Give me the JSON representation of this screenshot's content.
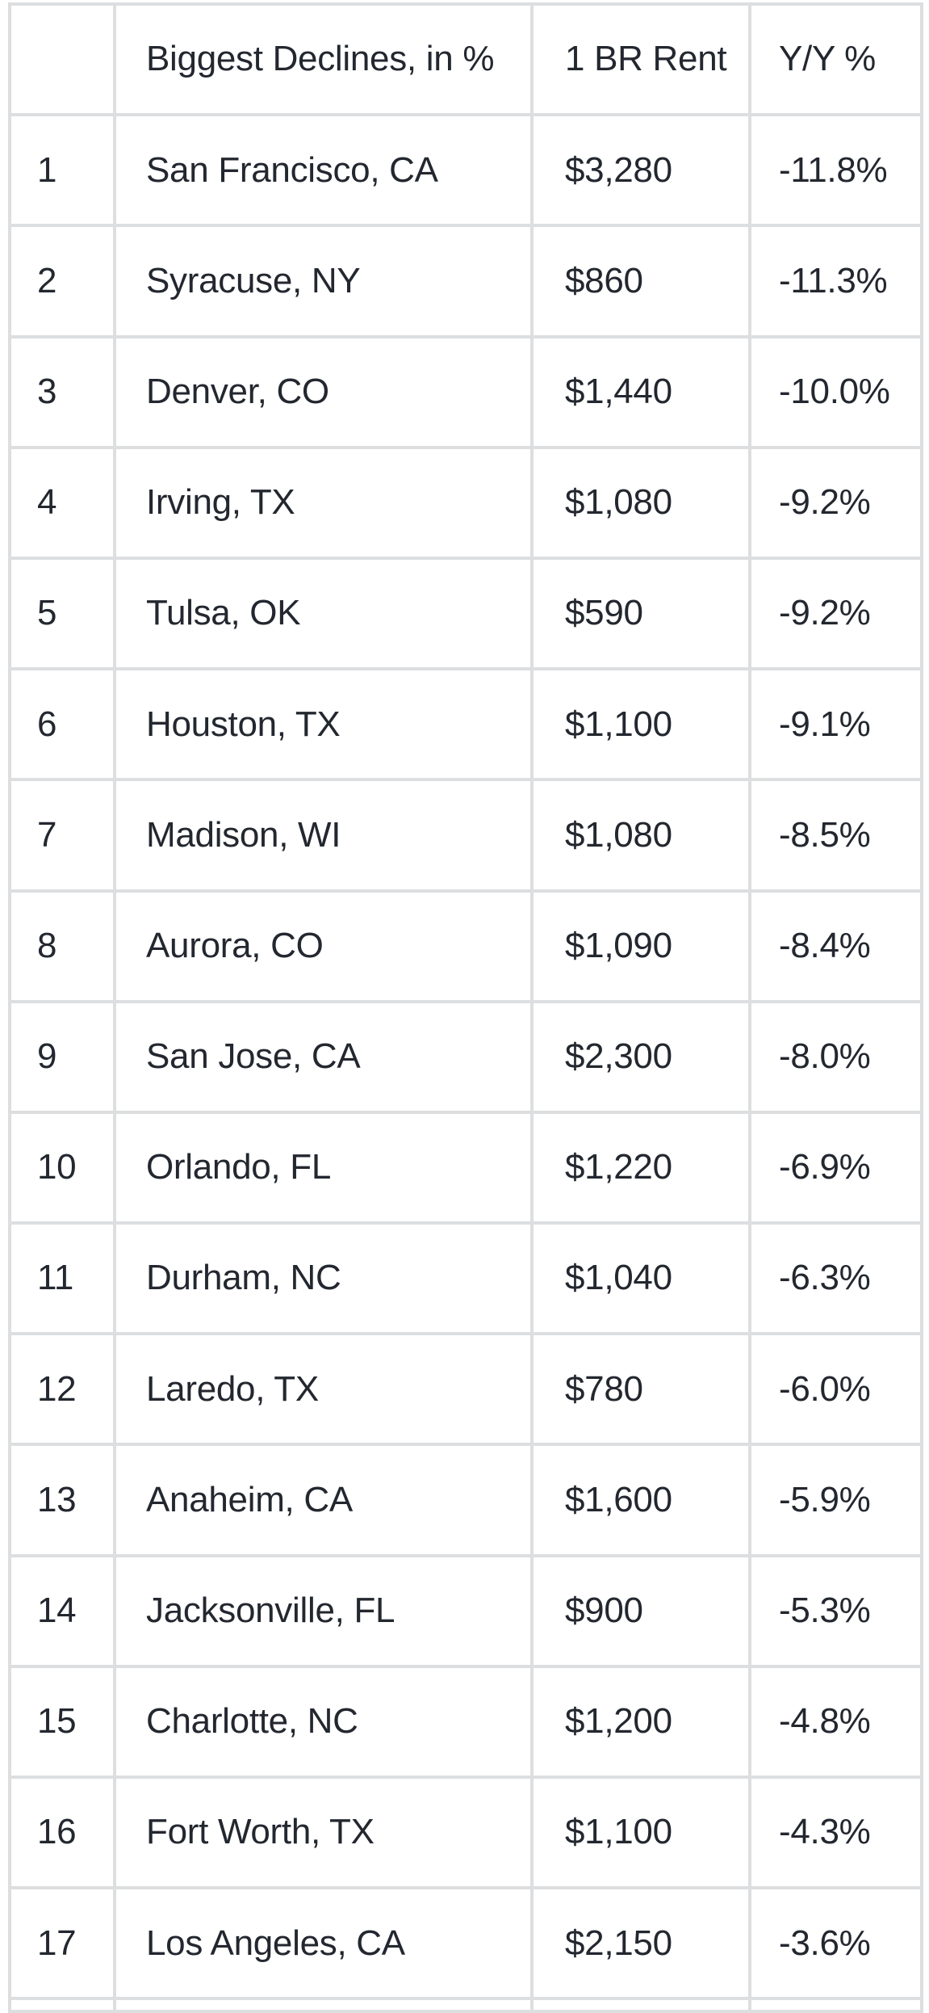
{
  "colors": {
    "border": "#dcdee0",
    "text": "#23272f",
    "background": "#ffffff"
  },
  "table": {
    "columns": [
      {
        "key": "rank",
        "label": ""
      },
      {
        "key": "city",
        "label": "Biggest Declines, in %"
      },
      {
        "key": "rent",
        "label": "1 BR Rent"
      },
      {
        "key": "yoy",
        "label": "Y/Y %"
      }
    ],
    "rows": [
      {
        "rank": "1",
        "city": "San Francisco, CA",
        "rent": "$3,280",
        "yoy": "-11.8%"
      },
      {
        "rank": "2",
        "city": "Syracuse, NY",
        "rent": "$860",
        "yoy": "-11.3%"
      },
      {
        "rank": "3",
        "city": "Denver, CO",
        "rent": "$1,440",
        "yoy": "-10.0%"
      },
      {
        "rank": "4",
        "city": "Irving, TX",
        "rent": "$1,080",
        "yoy": "-9.2%"
      },
      {
        "rank": "5",
        "city": "Tulsa, OK",
        "rent": "$590",
        "yoy": "-9.2%"
      },
      {
        "rank": "6",
        "city": "Houston, TX",
        "rent": "$1,100",
        "yoy": "-9.1%"
      },
      {
        "rank": "7",
        "city": "Madison, WI",
        "rent": "$1,080",
        "yoy": "-8.5%"
      },
      {
        "rank": "8",
        "city": "Aurora, CO",
        "rent": "$1,090",
        "yoy": "-8.4%"
      },
      {
        "rank": "9",
        "city": "San Jose, CA",
        "rent": "$2,300",
        "yoy": "-8.0%"
      },
      {
        "rank": "10",
        "city": "Orlando, FL",
        "rent": "$1,220",
        "yoy": "-6.9%"
      },
      {
        "rank": "11",
        "city": "Durham, NC",
        "rent": "$1,040",
        "yoy": "-6.3%"
      },
      {
        "rank": "12",
        "city": "Laredo, TX",
        "rent": "$780",
        "yoy": "-6.0%"
      },
      {
        "rank": "13",
        "city": "Anaheim, CA",
        "rent": "$1,600",
        "yoy": "-5.9%"
      },
      {
        "rank": "14",
        "city": "Jacksonville, FL",
        "rent": "$900",
        "yoy": "-5.3%"
      },
      {
        "rank": "15",
        "city": "Charlotte, NC",
        "rent": "$1,200",
        "yoy": "-4.8%"
      },
      {
        "rank": "16",
        "city": "Fort Worth, TX",
        "rent": "$1,100",
        "yoy": "-4.3%"
      },
      {
        "rank": "17",
        "city": "Los Angeles, CA",
        "rent": "$2,150",
        "yoy": "-3.6%"
      }
    ]
  },
  "chart_data": {
    "type": "table",
    "title": "Biggest Declines, in %",
    "columns": [
      "",
      "Biggest Declines, in %",
      "1 BR Rent",
      "Y/Y %"
    ],
    "rows": [
      [
        1,
        "San Francisco, CA",
        "$3,280",
        "-11.8%"
      ],
      [
        2,
        "Syracuse, NY",
        "$860",
        "-11.3%"
      ],
      [
        3,
        "Denver, CO",
        "$1,440",
        "-10.0%"
      ],
      [
        4,
        "Irving, TX",
        "$1,080",
        "-9.2%"
      ],
      [
        5,
        "Tulsa, OK",
        "$590",
        "-9.2%"
      ],
      [
        6,
        "Houston, TX",
        "$1,100",
        "-9.1%"
      ],
      [
        7,
        "Madison, WI",
        "$1,080",
        "-8.5%"
      ],
      [
        8,
        "Aurora, CO",
        "$1,090",
        "-8.4%"
      ],
      [
        9,
        "San Jose, CA",
        "$2,300",
        "-8.0%"
      ],
      [
        10,
        "Orlando, FL",
        "$1,220",
        "-6.9%"
      ],
      [
        11,
        "Durham, NC",
        "$1,040",
        "-6.3%"
      ],
      [
        12,
        "Laredo, TX",
        "$780",
        "-6.0%"
      ],
      [
        13,
        "Anaheim, CA",
        "$1,600",
        "-5.9%"
      ],
      [
        14,
        "Jacksonville, FL",
        "$900",
        "-5.3%"
      ],
      [
        15,
        "Charlotte, NC",
        "$1,200",
        "-4.8%"
      ],
      [
        16,
        "Fort Worth, TX",
        "$1,100",
        "-4.3%"
      ],
      [
        17,
        "Los Angeles, CA",
        "$2,150",
        "-3.6%"
      ]
    ],
    "cities": [
      "San Francisco, CA",
      "Syracuse, NY",
      "Denver, CO",
      "Irving, TX",
      "Tulsa, OK",
      "Houston, TX",
      "Madison, WI",
      "Aurora, CO",
      "San Jose, CA",
      "Orlando, FL",
      "Durham, NC",
      "Laredo, TX",
      "Anaheim, CA",
      "Jacksonville, FL",
      "Charlotte, NC",
      "Fort Worth, TX",
      "Los Angeles, CA"
    ],
    "rent_usd": [
      3280,
      860,
      1440,
      1080,
      590,
      1100,
      1080,
      1090,
      2300,
      1220,
      1040,
      780,
      1600,
      900,
      1200,
      1100,
      2150
    ],
    "yoy_pct": [
      -11.8,
      -11.3,
      -10.0,
      -9.2,
      -9.2,
      -9.1,
      -8.5,
      -8.4,
      -8.0,
      -6.9,
      -6.3,
      -6.0,
      -5.9,
      -5.3,
      -4.8,
      -4.3,
      -3.6
    ],
    "layout": {
      "grid": true,
      "header_row": true,
      "rank_column": true,
      "last_row_clipped": true
    }
  }
}
